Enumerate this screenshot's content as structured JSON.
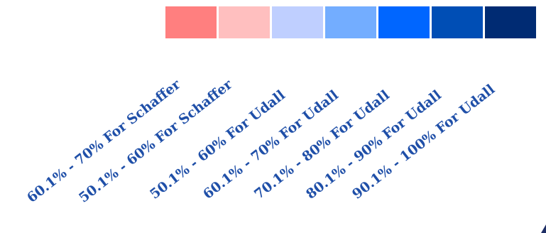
{
  "legend": {
    "items": [
      {
        "label": "60.1% - 70% For Schaffer",
        "color": "#ff7f7f"
      },
      {
        "label": "50.1% - 60% For Schaffer",
        "color": "#ffbfbf"
      },
      {
        "label": "50.1% - 60% For Udall",
        "color": "#bfcfff"
      },
      {
        "label": "60.1% - 70% For Udall",
        "color": "#73adff"
      },
      {
        "label": "70.1% - 80% For Udall",
        "color": "#0066ff"
      },
      {
        "label": "80.1% - 90% For Udall",
        "color": "#004eb5"
      },
      {
        "label": "90.1% - 100% For Udall",
        "color": "#002b73"
      }
    ]
  }
}
